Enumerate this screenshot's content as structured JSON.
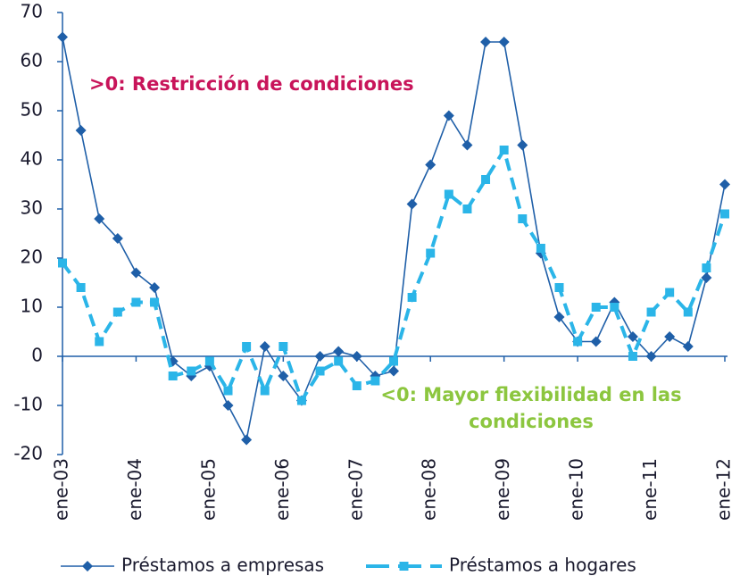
{
  "chart_data": {
    "type": "line",
    "categories": [
      "ene-03",
      null,
      null,
      null,
      "ene-04",
      null,
      null,
      null,
      "ene-05",
      null,
      null,
      null,
      "ene-06",
      null,
      null,
      null,
      "ene-07",
      null,
      null,
      null,
      "ene-08",
      null,
      null,
      null,
      "ene-09",
      null,
      null,
      null,
      "ene-10",
      null,
      null,
      null,
      "ene-11",
      null,
      null,
      null,
      "ene-12"
    ],
    "series": [
      {
        "name": "Préstamos a empresas",
        "color": "#1f5fa8",
        "values": [
          65,
          46,
          28,
          24,
          17,
          14,
          -1,
          -4,
          -2,
          -10,
          -17,
          2,
          -4,
          -9,
          0,
          1,
          0,
          -4,
          -3,
          31,
          39,
          49,
          43,
          64,
          64,
          43,
          21,
          8,
          3,
          3,
          11,
          4,
          0,
          4,
          2,
          16,
          35
        ]
      },
      {
        "name": "Préstamos a hogares",
        "color": "#2bb5e8",
        "values": [
          19,
          14,
          3,
          9,
          11,
          11,
          -4,
          -3,
          -1,
          -7,
          2,
          -7,
          2,
          -9,
          -3,
          -1,
          -6,
          -5,
          -1,
          12,
          21,
          33,
          30,
          36,
          42,
          28,
          22,
          14,
          3,
          10,
          10,
          0,
          9,
          13,
          9,
          18,
          29
        ]
      }
    ],
    "ylim": [
      -20,
      70
    ],
    "yticks": [
      -20,
      -10,
      0,
      10,
      20,
      30,
      40,
      50,
      60,
      70
    ],
    "annotations": [
      {
        "lines": [
          ">0: Restricción de condiciones"
        ],
        "color": "#c8145a"
      },
      {
        "lines": [
          "<0: Mayor flexibilidad en las",
          "condiciones"
        ],
        "color": "#8cc63f"
      }
    ]
  }
}
